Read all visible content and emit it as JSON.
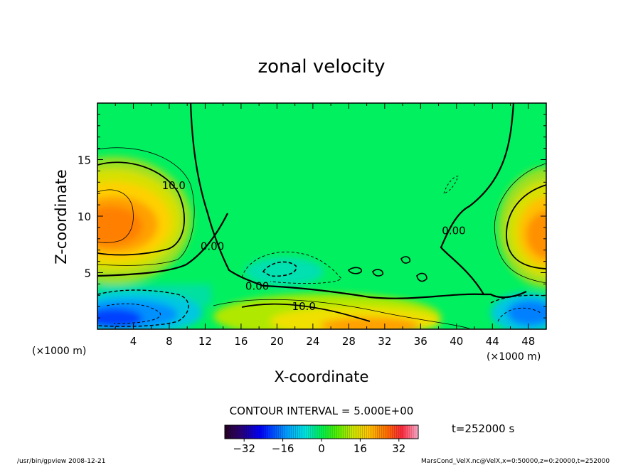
{
  "chart_data": {
    "type": "heatmap",
    "title": "zonal velocity",
    "xlabel": "X-coordinate",
    "ylabel": "Z-coordinate",
    "x_unit_left": "(×1000 m)",
    "x_unit_right": "(×1000 m)",
    "x_ticks": [
      "4",
      "8",
      "12",
      "16",
      "20",
      "24",
      "28",
      "32",
      "36",
      "40",
      "44",
      "48"
    ],
    "x_tick_values": [
      4,
      8,
      12,
      16,
      20,
      24,
      28,
      32,
      36,
      40,
      44,
      48
    ],
    "y_ticks": [
      "5",
      "10",
      "15"
    ],
    "y_tick_values": [
      5,
      10,
      15
    ],
    "xlim": [
      0,
      50
    ],
    "ylim": [
      0,
      20
    ],
    "contour_interval_label": "CONTOUR INTERVAL = 5.000E+00",
    "contour_interval": 5,
    "contour_labels": [
      {
        "text": "10.0",
        "x": 8.5,
        "z": 12.4
      },
      {
        "text": "0.00",
        "x": 12.8,
        "z": 7.0
      },
      {
        "text": "0.00",
        "x": 17.8,
        "z": 3.5
      },
      {
        "text": "10.0",
        "x": 23.0,
        "z": 1.7
      },
      {
        "text": "0.00",
        "x": 39.7,
        "z": 8.4
      }
    ],
    "time_label": "t=252000 s",
    "colorbar": {
      "min": -40,
      "max": 40,
      "tick_labels": [
        "−32",
        "−16",
        "0",
        "16",
        "32"
      ],
      "tick_values": [
        -32,
        -16,
        0,
        16,
        32
      ]
    },
    "features": [
      {
        "label": "jet core left",
        "x": 2.5,
        "z": 9.5,
        "value": 28
      },
      {
        "label": "jet core right",
        "x": 49,
        "z": 8.5,
        "value": 28
      },
      {
        "label": "near-surface westward left",
        "x": 4,
        "z": 1.2,
        "value": -20
      },
      {
        "label": "near-surface westward right",
        "x": 47,
        "z": 1.2,
        "value": -20
      },
      {
        "label": "near-surface eastward center",
        "x": 30,
        "z": 0.6,
        "value": 24
      }
    ]
  },
  "footer": {
    "left": "/usr/bin/gpview   2008-12-21",
    "right": "MarsCond_VelX.nc@VelX,x=0:50000,z=0:20000,t=252000"
  },
  "colors": {
    "background_field": "#00f25a",
    "frame": "#000000"
  }
}
